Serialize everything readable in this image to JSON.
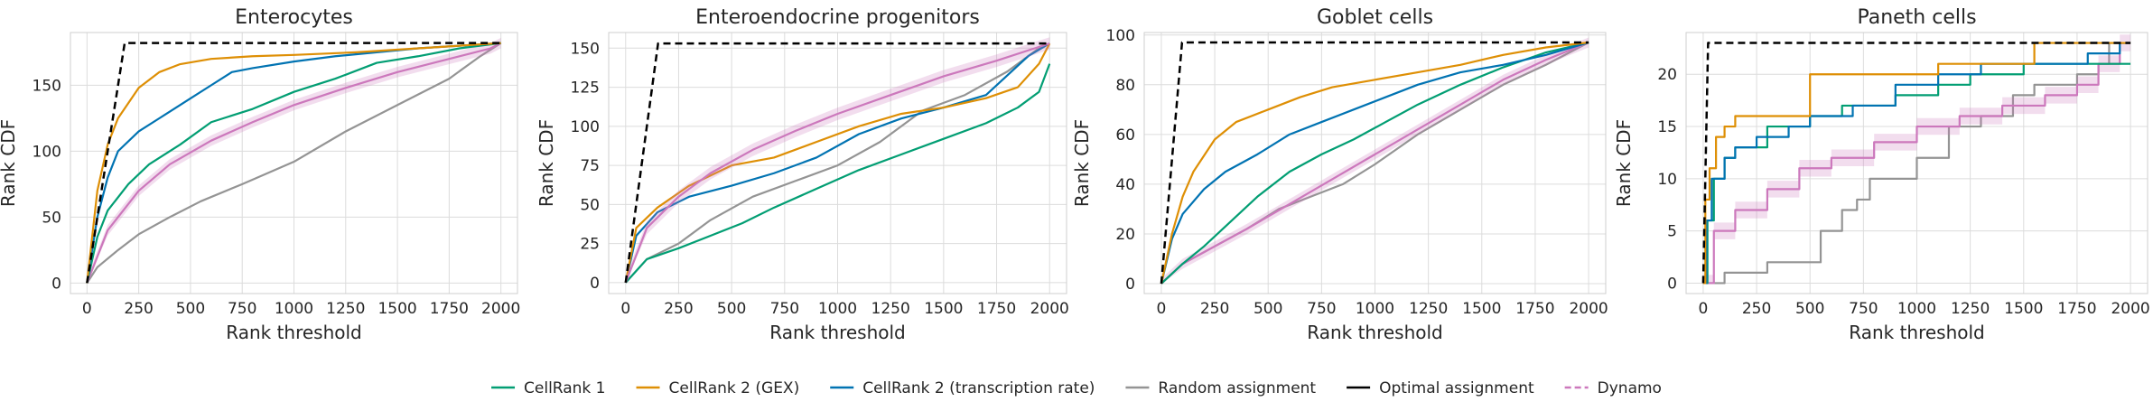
{
  "colors": {
    "CellRank 1": "#029e73",
    "CellRank 2 (GEX)": "#de8f05",
    "CellRank 2 (transcription rate)": "#0173b2",
    "Random assignment": "#949494",
    "Optimal assignment": "#000000",
    "Dynamo": "#cc78bc"
  },
  "legend": [
    {
      "label": "CellRank 1",
      "dashed": false
    },
    {
      "label": "CellRank 2 (GEX)",
      "dashed": false
    },
    {
      "label": "CellRank 2 (transcription rate)",
      "dashed": false
    },
    {
      "label": "Random assignment",
      "dashed": false
    },
    {
      "label": "Optimal assignment",
      "dashed": false
    },
    {
      "label": "Dynamo",
      "dashed": true
    }
  ],
  "chart_data": [
    {
      "type": "line",
      "title": "Enterocytes",
      "xlabel": "Rank threshold",
      "ylabel": "Rank CDF",
      "xlim": [
        -80,
        2080
      ],
      "ylim": [
        -8,
        190
      ],
      "xticks": [
        0,
        250,
        500,
        750,
        1000,
        1250,
        1500,
        1750,
        2000
      ],
      "yticks": [
        0,
        50,
        100,
        150
      ],
      "grid": true,
      "series": [
        {
          "name": "Random assignment",
          "x": [
            0,
            50,
            150,
            250,
            400,
            550,
            750,
            1000,
            1250,
            1500,
            1750,
            1900,
            2000
          ],
          "y": [
            0,
            12,
            25,
            37,
            50,
            62,
            75,
            92,
            115,
            135,
            155,
            172,
            182
          ]
        },
        {
          "name": "Dynamo",
          "band": 4,
          "x": [
            0,
            100,
            250,
            400,
            600,
            800,
            1000,
            1250,
            1500,
            1750,
            1950,
            2000
          ],
          "y": [
            0,
            40,
            70,
            90,
            108,
            122,
            135,
            148,
            160,
            170,
            178,
            182
          ]
        },
        {
          "name": "CellRank 1",
          "x": [
            0,
            50,
            100,
            200,
            300,
            450,
            600,
            800,
            1000,
            1200,
            1400,
            1600,
            1800,
            2000
          ],
          "y": [
            0,
            35,
            55,
            75,
            90,
            105,
            122,
            132,
            145,
            155,
            167,
            172,
            178,
            182
          ]
        },
        {
          "name": "CellRank 2 (transcription rate)",
          "x": [
            0,
            50,
            100,
            150,
            250,
            350,
            500,
            600,
            700,
            800,
            1000,
            1200,
            1400,
            1600,
            1800,
            2000
          ],
          "y": [
            0,
            50,
            80,
            100,
            115,
            125,
            140,
            150,
            160,
            163,
            168,
            172,
            175,
            178,
            180,
            182
          ]
        },
        {
          "name": "CellRank 2 (GEX)",
          "x": [
            0,
            50,
            100,
            150,
            250,
            350,
            450,
            600,
            800,
            1000,
            1300,
            1600,
            2000
          ],
          "y": [
            0,
            70,
            105,
            125,
            148,
            160,
            166,
            170,
            172,
            173,
            175,
            178,
            182
          ]
        },
        {
          "name": "Optimal assignment",
          "x": [
            0,
            182,
            2000
          ],
          "y": [
            0,
            182,
            182
          ]
        }
      ]
    },
    {
      "type": "line",
      "title": "Enteroendocrine progenitors",
      "xlabel": "Rank threshold",
      "ylabel": "Rank CDF",
      "xlim": [
        -80,
        2080
      ],
      "ylim": [
        -7,
        160
      ],
      "xticks": [
        0,
        250,
        500,
        750,
        1000,
        1250,
        1500,
        1750,
        2000
      ],
      "yticks": [
        0,
        25,
        50,
        75,
        100,
        125,
        150
      ],
      "grid": true,
      "series": [
        {
          "name": "Random assignment",
          "x": [
            0,
            100,
            250,
            400,
            600,
            800,
            1000,
            1200,
            1400,
            1600,
            1800,
            1950,
            2000
          ],
          "y": [
            0,
            15,
            25,
            40,
            55,
            65,
            75,
            90,
            110,
            120,
            135,
            150,
            153
          ]
        },
        {
          "name": "CellRank 1",
          "x": [
            0,
            100,
            250,
            400,
            550,
            700,
            900,
            1100,
            1300,
            1500,
            1700,
            1850,
            1950,
            2000
          ],
          "y": [
            0,
            15,
            22,
            30,
            38,
            48,
            60,
            72,
            82,
            92,
            102,
            112,
            122,
            140
          ]
        },
        {
          "name": "CellRank 2 (transcription rate)",
          "x": [
            0,
            50,
            150,
            300,
            500,
            700,
            900,
            1100,
            1300,
            1500,
            1700,
            1900,
            2000
          ],
          "y": [
            0,
            30,
            45,
            55,
            62,
            70,
            80,
            95,
            105,
            112,
            120,
            145,
            153
          ]
        },
        {
          "name": "CellRank 2 (GEX)",
          "x": [
            0,
            50,
            150,
            300,
            500,
            700,
            900,
            1100,
            1300,
            1500,
            1700,
            1850,
            1950,
            2000
          ],
          "y": [
            0,
            35,
            48,
            62,
            75,
            80,
            90,
            100,
            108,
            112,
            118,
            125,
            140,
            153
          ]
        },
        {
          "name": "Dynamo",
          "band": 4,
          "x": [
            0,
            100,
            250,
            400,
            600,
            800,
            1000,
            1250,
            1500,
            1750,
            2000
          ],
          "y": [
            0,
            35,
            55,
            70,
            85,
            97,
            108,
            120,
            132,
            142,
            153
          ]
        },
        {
          "name": "Optimal assignment",
          "x": [
            0,
            153,
            2000
          ],
          "y": [
            0,
            153,
            153
          ]
        }
      ]
    },
    {
      "type": "line",
      "title": "Goblet cells",
      "xlabel": "Rank threshold",
      "ylabel": "Rank CDF",
      "xlim": [
        -80,
        2080
      ],
      "ylim": [
        -4,
        101
      ],
      "xticks": [
        0,
        250,
        500,
        750,
        1000,
        1250,
        1500,
        1750,
        2000
      ],
      "yticks": [
        0,
        20,
        40,
        60,
        80,
        100
      ],
      "grid": true,
      "series": [
        {
          "name": "Random assignment",
          "x": [
            0,
            100,
            250,
            400,
            550,
            700,
            850,
            1000,
            1200,
            1400,
            1600,
            1800,
            2000
          ],
          "y": [
            0,
            8,
            15,
            22,
            30,
            35,
            40,
            48,
            60,
            70,
            80,
            88,
            97
          ]
        },
        {
          "name": "Dynamo",
          "band": 2,
          "x": [
            0,
            100,
            250,
            400,
            600,
            800,
            1000,
            1200,
            1400,
            1600,
            1800,
            2000
          ],
          "y": [
            0,
            8,
            15,
            22,
            32,
            42,
            52,
            62,
            72,
            82,
            90,
            97
          ]
        },
        {
          "name": "CellRank 1",
          "x": [
            0,
            100,
            200,
            300,
            450,
            600,
            750,
            900,
            1050,
            1200,
            1400,
            1600,
            1800,
            2000
          ],
          "y": [
            0,
            8,
            15,
            23,
            35,
            45,
            52,
            58,
            65,
            72,
            80,
            87,
            93,
            97
          ]
        },
        {
          "name": "CellRank 2 (transcription rate)",
          "x": [
            0,
            50,
            100,
            200,
            300,
            450,
            600,
            750,
            900,
            1050,
            1200,
            1400,
            1600,
            1800,
            2000
          ],
          "y": [
            0,
            18,
            28,
            38,
            45,
            52,
            60,
            65,
            70,
            75,
            80,
            85,
            88,
            92,
            97
          ]
        },
        {
          "name": "CellRank 2 (GEX)",
          "x": [
            0,
            50,
            100,
            150,
            250,
            350,
            500,
            650,
            800,
            1000,
            1200,
            1400,
            1600,
            1800,
            2000
          ],
          "y": [
            0,
            20,
            35,
            45,
            58,
            65,
            70,
            75,
            79,
            82,
            85,
            88,
            92,
            95,
            97
          ]
        },
        {
          "name": "Optimal assignment",
          "x": [
            0,
            97,
            2000
          ],
          "y": [
            0,
            97,
            97
          ]
        }
      ]
    },
    {
      "type": "line",
      "title": "Paneth cells",
      "xlabel": "Rank threshold",
      "ylabel": "Rank CDF",
      "xlim": [
        -80,
        2080
      ],
      "ylim": [
        -1,
        24
      ],
      "xticks": [
        0,
        250,
        500,
        750,
        1000,
        1250,
        1500,
        1750,
        2000
      ],
      "yticks": [
        0,
        5,
        10,
        15,
        20
      ],
      "grid": true,
      "step": true,
      "series": [
        {
          "name": "Random assignment",
          "x": [
            0,
            100,
            300,
            550,
            650,
            720,
            780,
            1000,
            1150,
            1300,
            1450,
            1550,
            1580,
            1750,
            1850,
            1900,
            2000
          ],
          "y": [
            0,
            1,
            2,
            5,
            7,
            8,
            10,
            12,
            15,
            16,
            18,
            19,
            19,
            20,
            21,
            23,
            23
          ]
        },
        {
          "name": "Dynamo",
          "band": 0.8,
          "x": [
            0,
            50,
            150,
            300,
            450,
            600,
            800,
            1000,
            1200,
            1400,
            1600,
            1750,
            1850,
            1950,
            2000
          ],
          "y": [
            0,
            5,
            7,
            9,
            11,
            12,
            13.5,
            15,
            16,
            17,
            18,
            19,
            21,
            23,
            23
          ]
        },
        {
          "name": "CellRank 1",
          "x": [
            0,
            20,
            50,
            100,
            150,
            300,
            500,
            650,
            900,
            1100,
            1250,
            1500,
            2000
          ],
          "y": [
            0,
            6,
            10,
            12,
            13,
            15,
            16,
            17,
            18,
            19,
            20,
            21,
            21
          ]
        },
        {
          "name": "CellRank 2 (transcription rate)",
          "x": [
            0,
            15,
            40,
            100,
            150,
            250,
            400,
            500,
            700,
            900,
            1100,
            1300,
            1500,
            1800,
            1950,
            2000
          ],
          "y": [
            0,
            6,
            10,
            12,
            13,
            14,
            15,
            16,
            17,
            19,
            20,
            21,
            21,
            22,
            23,
            23
          ]
        },
        {
          "name": "CellRank 2 (GEX)",
          "x": [
            0,
            10,
            30,
            60,
            100,
            150,
            250,
            400,
            500,
            700,
            900,
            1100,
            1300,
            1550,
            2000
          ],
          "y": [
            0,
            8,
            11,
            14,
            15,
            16,
            16,
            16,
            20,
            20,
            20,
            21,
            21,
            23,
            23
          ]
        },
        {
          "name": "Optimal assignment",
          "x": [
            0,
            23,
            2000
          ],
          "y": [
            0,
            23,
            23
          ]
        }
      ]
    }
  ]
}
